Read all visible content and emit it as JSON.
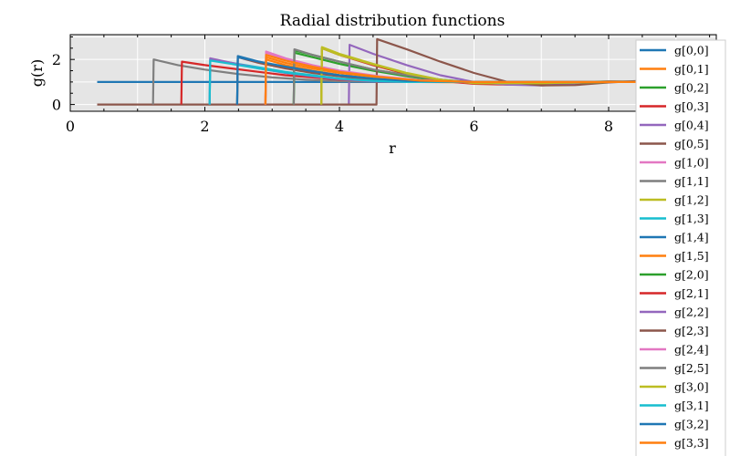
{
  "chart_data": {
    "type": "line",
    "title": "Radial distribution functions",
    "xlabel": "r",
    "ylabel": "g(r)",
    "xlim": [
      0,
      9.6
    ],
    "ylim": [
      -0.3,
      3.1
    ],
    "x_ticks": [
      0,
      2,
      4,
      6,
      8
    ],
    "y_ticks": [
      0,
      2
    ],
    "grid": true,
    "legend_position": "upper-right",
    "offset_text": "6",
    "colors": [
      "#1f77b4",
      "#ff7f0e",
      "#2ca02c",
      "#d62728",
      "#9467bd",
      "#8c564b",
      "#e377c2",
      "#7f7f7f",
      "#bcbd22",
      "#17becf"
    ],
    "series": [
      {
        "name": "g[0,0]",
        "x": [
          0.4,
          9.6
        ],
        "y": [
          1.0,
          1.0
        ]
      },
      {
        "name": "g[0,1]",
        "x": [
          2.9,
          2.91,
          3.2,
          3.6,
          4.0,
          4.6,
          5.2,
          6.0,
          7.0,
          8.0,
          9.0,
          9.6
        ],
        "y": [
          0.0,
          2.0,
          1.75,
          1.5,
          1.3,
          1.1,
          1.0,
          0.98,
          1.0,
          1.0,
          1.0,
          1.0
        ]
      },
      {
        "name": "g[0,2]",
        "x": [
          3.32,
          3.33,
          3.6,
          4.0,
          4.5,
          5.0,
          5.5,
          6.0,
          6.5,
          7.0,
          7.5,
          8.0,
          9.0,
          9.6
        ],
        "y": [
          0.0,
          2.3,
          2.1,
          1.8,
          1.5,
          1.25,
          1.05,
          0.95,
          0.92,
          0.95,
          1.0,
          1.02,
          1.0,
          1.0
        ]
      },
      {
        "name": "g[0,3]",
        "x": [
          3.73,
          3.74,
          4.0,
          4.5,
          5.0,
          5.5,
          6.0,
          6.5,
          7.0,
          7.5,
          8.0,
          9.0,
          9.6
        ],
        "y": [
          0.0,
          2.5,
          2.2,
          1.75,
          1.35,
          1.05,
          0.92,
          0.88,
          0.92,
          0.98,
          1.02,
          1.0,
          1.0
        ]
      },
      {
        "name": "g[0,4]",
        "x": [
          4.14,
          4.15,
          4.5,
          5.0,
          5.5,
          6.0,
          6.5,
          7.0,
          7.5,
          8.0,
          9.0,
          9.6
        ],
        "y": [
          0.0,
          2.65,
          2.25,
          1.75,
          1.3,
          1.0,
          0.88,
          0.85,
          0.92,
          1.0,
          1.05,
          1.02
        ]
      },
      {
        "name": "g[0,5]",
        "x": [
          0.4,
          4.55,
          4.56,
          5.0,
          5.5,
          6.0,
          6.5,
          7.0,
          7.5,
          8.0,
          8.5,
          9.0,
          9.6
        ],
        "y": [
          0.0,
          0.0,
          2.9,
          2.45,
          1.9,
          1.4,
          1.0,
          0.85,
          0.86,
          0.98,
          1.05,
          1.05,
          1.02
        ]
      },
      {
        "name": "g[1,0]",
        "x": [
          2.9,
          2.91,
          3.2,
          3.6,
          4.0,
          4.6,
          5.2,
          6.0,
          7.0,
          8.0,
          9.0,
          9.6
        ],
        "y": [
          0.0,
          2.3,
          2.0,
          1.7,
          1.45,
          1.2,
          1.05,
          0.98,
          1.0,
          1.0,
          1.0,
          1.0
        ]
      },
      {
        "name": "g[1,1]",
        "x": [
          1.23,
          1.24,
          1.6,
          2.0,
          2.5,
          3.0,
          3.5,
          4.0,
          5.0,
          6.0,
          7.0,
          8.0,
          9.6
        ],
        "y": [
          0.0,
          2.0,
          1.75,
          1.55,
          1.35,
          1.2,
          1.1,
          1.03,
          1.0,
          1.0,
          1.0,
          1.0,
          1.0
        ]
      },
      {
        "name": "g[1,2]",
        "x": [
          3.73,
          3.74,
          4.0,
          4.5,
          5.0,
          5.5,
          6.0,
          7.0,
          8.0,
          9.0,
          9.6
        ],
        "y": [
          0.0,
          2.55,
          2.25,
          1.8,
          1.4,
          1.1,
          0.95,
          0.95,
          1.0,
          1.0,
          1.0
        ]
      },
      {
        "name": "g[1,3]",
        "x": [
          2.07,
          2.08,
          2.4,
          2.8,
          3.2,
          3.6,
          4.0,
          4.5,
          5.0,
          6.0,
          7.0,
          8.0,
          9.6
        ],
        "y": [
          0.0,
          2.0,
          1.85,
          1.65,
          1.45,
          1.3,
          1.15,
          1.05,
          1.0,
          1.0,
          1.0,
          1.0,
          1.0
        ]
      },
      {
        "name": "g[1,4]",
        "x": [
          2.48,
          2.49,
          2.8,
          3.2,
          3.6,
          4.0,
          4.5,
          5.0,
          6.0,
          7.0,
          8.0,
          9.6
        ],
        "y": [
          0.0,
          2.15,
          1.9,
          1.65,
          1.45,
          1.3,
          1.15,
          1.05,
          1.0,
          1.0,
          1.0,
          1.0
        ]
      },
      {
        "name": "g[1,5]",
        "x": [
          2.9,
          2.91,
          3.2,
          3.6,
          4.0,
          4.6,
          5.2,
          6.0,
          7.0,
          8.0,
          9.0,
          9.6
        ],
        "y": [
          0.0,
          2.1,
          1.85,
          1.6,
          1.4,
          1.2,
          1.05,
          0.98,
          1.0,
          1.0,
          1.0,
          1.0
        ]
      },
      {
        "name": "g[2,0]",
        "x": [
          3.32,
          3.33,
          3.6,
          4.0,
          4.5,
          5.0,
          5.5,
          6.0,
          7.0,
          8.0,
          9.0,
          9.6
        ],
        "y": [
          0.0,
          2.4,
          2.2,
          1.9,
          1.55,
          1.3,
          1.1,
          0.98,
          0.96,
          1.0,
          1.0,
          1.0
        ]
      },
      {
        "name": "g[2,1]",
        "x": [
          1.65,
          1.66,
          2.0,
          2.4,
          2.8,
          3.2,
          3.6,
          4.0,
          4.5,
          5.0,
          6.0,
          7.0,
          8.0,
          9.6
        ],
        "y": [
          0.0,
          1.9,
          1.75,
          1.6,
          1.45,
          1.3,
          1.2,
          1.1,
          1.05,
          1.0,
          1.0,
          1.0,
          1.0,
          1.0
        ]
      },
      {
        "name": "g[2,2]",
        "x": [
          2.07,
          2.08,
          2.4,
          2.8,
          3.2,
          3.6,
          4.0,
          4.5,
          5.0,
          6.0,
          7.0,
          8.0,
          9.6
        ],
        "y": [
          0.0,
          2.05,
          1.85,
          1.6,
          1.4,
          1.25,
          1.12,
          1.03,
          1.0,
          1.0,
          1.0,
          1.0,
          1.0
        ]
      },
      {
        "name": "g[2,3]",
        "x": [
          2.48,
          2.49,
          2.8,
          3.2,
          3.6,
          4.0,
          4.5,
          5.0,
          6.0,
          7.0,
          8.0,
          9.6
        ],
        "y": [
          0.0,
          2.1,
          1.85,
          1.6,
          1.4,
          1.25,
          1.12,
          1.03,
          1.0,
          1.0,
          1.0,
          1.0
        ]
      },
      {
        "name": "g[2,4]",
        "x": [
          2.9,
          2.91,
          3.2,
          3.6,
          4.0,
          4.6,
          5.2,
          6.0,
          7.0,
          8.0,
          9.0,
          9.6
        ],
        "y": [
          0.0,
          2.35,
          2.05,
          1.75,
          1.5,
          1.25,
          1.08,
          1.0,
          1.0,
          1.0,
          1.0,
          1.0
        ]
      },
      {
        "name": "g[2,5]",
        "x": [
          3.32,
          3.33,
          3.6,
          4.0,
          4.5,
          5.0,
          5.5,
          6.0,
          7.0,
          8.0,
          9.0,
          9.6
        ],
        "y": [
          0.0,
          2.45,
          2.2,
          1.9,
          1.55,
          1.3,
          1.1,
          0.98,
          0.96,
          1.0,
          1.0,
          1.0
        ]
      },
      {
        "name": "g[3,0]",
        "x": [
          3.73,
          3.74,
          4.0,
          4.5,
          5.0,
          5.5,
          6.0,
          7.0,
          8.0,
          9.0,
          9.6
        ],
        "y": [
          0.0,
          2.5,
          2.2,
          1.78,
          1.38,
          1.1,
          0.95,
          0.95,
          1.0,
          1.0,
          1.0
        ]
      },
      {
        "name": "g[3,1]",
        "x": [
          2.07,
          2.08,
          2.4,
          2.8,
          3.2,
          3.6,
          4.0,
          4.5,
          5.0,
          6.0,
          7.0,
          8.0,
          9.6
        ],
        "y": [
          0.0,
          1.95,
          1.8,
          1.6,
          1.42,
          1.28,
          1.15,
          1.05,
          1.0,
          1.0,
          1.0,
          1.0,
          1.0
        ]
      },
      {
        "name": "g[3,2]",
        "x": [
          2.48,
          2.49,
          2.8,
          3.2,
          3.6,
          4.0,
          4.5,
          5.0,
          6.0,
          7.0,
          8.0,
          9.6
        ],
        "y": [
          0.0,
          2.1,
          1.9,
          1.68,
          1.48,
          1.3,
          1.15,
          1.05,
          1.0,
          1.0,
          1.0,
          1.0
        ]
      },
      {
        "name": "g[3,3]",
        "x": [
          2.9,
          2.91,
          3.2,
          3.6,
          4.0,
          4.6,
          5.2,
          6.0,
          7.0,
          8.0,
          9.0,
          9.6
        ],
        "y": [
          0.0,
          2.2,
          1.95,
          1.68,
          1.45,
          1.22,
          1.06,
          1.0,
          1.0,
          1.0,
          1.0,
          1.0
        ]
      }
    ]
  }
}
